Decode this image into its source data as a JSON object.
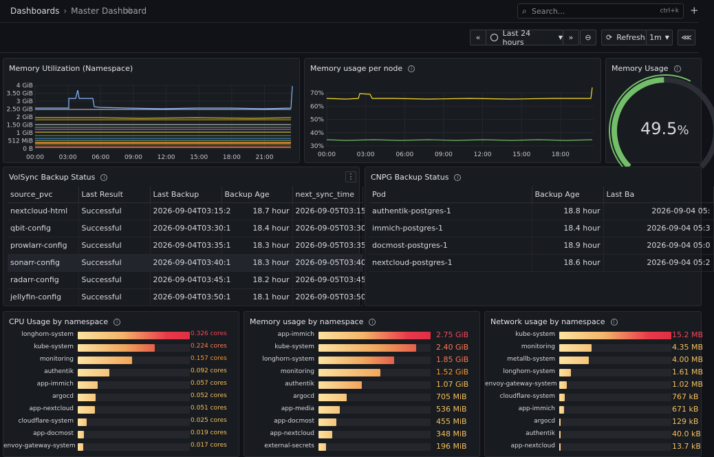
{
  "header": {
    "crumb1": "Dashboards",
    "crumb2": "Master Dashboard",
    "search_placeholder": "Search...",
    "search_shortcut": "ctrl+k"
  },
  "toolbar": {
    "time_range": "Last 24 hours",
    "refresh": "Refresh",
    "interval": "1m"
  },
  "colors": {
    "green": "#73bf69",
    "yellow": "#fade2a",
    "orange": "#ff9830",
    "red": "#f2495c",
    "blue": "#8ab8ff"
  },
  "mem_ns": {
    "title": "Memory Utilization (Namespace)",
    "y_ticks": [
      "4 GiB",
      "3.50 GiB",
      "3 GiB",
      "2.50 GiB",
      "2 GiB",
      "1.50 GiB",
      "1 GiB",
      "512 MiB",
      "0 B"
    ],
    "x_ticks": [
      "00:00",
      "03:00",
      "06:00",
      "09:00",
      "12:00",
      "15:00",
      "18:00",
      "21:00"
    ]
  },
  "mem_node": {
    "title": "Memory usage per node",
    "y_ticks": [
      "70%",
      "60%",
      "50%",
      "40%",
      "30%"
    ],
    "x_ticks": [
      "00:00",
      "03:00",
      "06:00",
      "09:00",
      "12:00",
      "15:00",
      "18:00"
    ]
  },
  "gauge": {
    "title": "Memory Usage",
    "value": "49.5",
    "unit": "%",
    "fraction": 0.495
  },
  "volsync": {
    "title": "VolSync Backup Status",
    "columns": [
      "source_pvc",
      "Last Result",
      "Last Backup",
      "Backup Age",
      "next_sync_time"
    ],
    "rows": [
      [
        "nextcloud-html",
        "Successful",
        "2026-09-04T03:15:2",
        "18.7 hour",
        "2026-09-05T03:15"
      ],
      [
        "qbit-config",
        "Successful",
        "2026-09-04T03:30:1",
        "18.4 hour",
        "2026-09-05T03:30"
      ],
      [
        "prowlarr-config",
        "Successful",
        "2026-09-04T03:35:1",
        "18.3 hour",
        "2026-09-05T03:35"
      ],
      [
        "sonarr-config",
        "Successful",
        "2026-09-04T03:40:1",
        "18.3 hour",
        "2026-09-05T03:40"
      ],
      [
        "radarr-config",
        "Successful",
        "2026-09-04T03:45:1",
        "18.2 hour",
        "2026-09-05T03:45"
      ],
      [
        "jellyfin-config",
        "Successful",
        "2026-09-04T03:50:1",
        "18.1 hour",
        "2026-09-05T03:50"
      ]
    ]
  },
  "cnpg": {
    "title": "CNPG Backup Status",
    "columns": [
      "Pod",
      "Backup Age",
      "Last Ba"
    ],
    "rows": [
      [
        "authentik-postgres-1",
        "18.8 hour",
        "2026-09-04 05:"
      ],
      [
        "immich-postgres-1",
        "18.4 hour",
        "2026-09-04 05:3"
      ],
      [
        "docmost-postgres-1",
        "18.9 hour",
        "2026-09-04 05:0"
      ],
      [
        "nextcloud-postgres-1",
        "18.6 hour",
        "2026-09-04 05:2"
      ]
    ]
  },
  "cpu": {
    "title": "CPU Usage by namespace",
    "rows": [
      {
        "label": "longhorn-system",
        "value": "0.326 cores",
        "frac": 1.0
      },
      {
        "label": "kube-system",
        "value": "0.224 cores",
        "frac": 0.687
      },
      {
        "label": "monitoring",
        "value": "0.157 cores",
        "frac": 0.482
      },
      {
        "label": "authentik",
        "value": "0.092 cores",
        "frac": 0.282
      },
      {
        "label": "app-immich",
        "value": "0.057 cores",
        "frac": 0.175
      },
      {
        "label": "argocd",
        "value": "0.052 cores",
        "frac": 0.16
      },
      {
        "label": "app-nextcloud",
        "value": "0.051 cores",
        "frac": 0.156
      },
      {
        "label": "cloudflare-system",
        "value": "0.025 cores",
        "frac": 0.077
      },
      {
        "label": "app-docmost",
        "value": "0.019 cores",
        "frac": 0.058
      },
      {
        "label": "envoy-gateway-system",
        "value": "0.017 cores",
        "frac": 0.052
      }
    ]
  },
  "memns": {
    "title": "Memory usage by namespace",
    "rows": [
      {
        "label": "app-immich",
        "value": "2.75 GiB",
        "frac": 1.0
      },
      {
        "label": "kube-system",
        "value": "2.40 GiB",
        "frac": 0.873
      },
      {
        "label": "longhorn-system",
        "value": "1.85 GiB",
        "frac": 0.673
      },
      {
        "label": "monitoring",
        "value": "1.52 GiB",
        "frac": 0.553
      },
      {
        "label": "authentik",
        "value": "1.07 GiB",
        "frac": 0.389
      },
      {
        "label": "argocd",
        "value": "705 MiB",
        "frac": 0.25
      },
      {
        "label": "app-media",
        "value": "536 MiB",
        "frac": 0.19
      },
      {
        "label": "app-docmost",
        "value": "455 MiB",
        "frac": 0.162
      },
      {
        "label": "app-nextcloud",
        "value": "348 MiB",
        "frac": 0.124
      },
      {
        "label": "external-secrets",
        "value": "196 MiB",
        "frac": 0.07
      }
    ]
  },
  "net": {
    "title": "Network usage by namespace",
    "rows": [
      {
        "label": "kube-system",
        "value": "15.2 MB",
        "frac": 1.0
      },
      {
        "label": "monitoring",
        "value": "4.35 MB",
        "frac": 0.286
      },
      {
        "label": "metallb-system",
        "value": "4.00 MB",
        "frac": 0.263
      },
      {
        "label": "longhorn-system",
        "value": "1.61 MB",
        "frac": 0.106
      },
      {
        "label": "envoy-gateway-system",
        "value": "1.02 MB",
        "frac": 0.067
      },
      {
        "label": "cloudflare-system",
        "value": "767 kB",
        "frac": 0.05
      },
      {
        "label": "app-immich",
        "value": "671 kB",
        "frac": 0.044
      },
      {
        "label": "argocd",
        "value": "129 kB",
        "frac": 0.009
      },
      {
        "label": "authentik",
        "value": "40.0 kB",
        "frac": 0.003
      },
      {
        "label": "app-nextcloud",
        "value": "13.7 kB",
        "frac": 0.001
      }
    ]
  }
}
